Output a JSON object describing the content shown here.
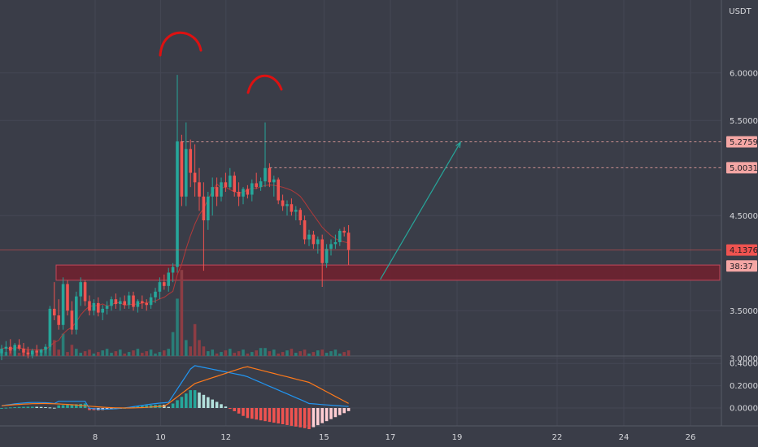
{
  "chart_data": {
    "type": "candlestick",
    "currency": "USDT",
    "price_axis": {
      "range": [
        2.75,
        6.35
      ],
      "ticks": [
        "6.0000",
        "5.5000",
        "4.5000",
        "3.5000",
        "3.0000"
      ]
    },
    "macd_axis": {
      "range": [
        -0.05,
        0.45
      ],
      "ticks": [
        "0.4000",
        "0.2000",
        "0.0000"
      ]
    },
    "x_axis": {
      "labels": [
        {
          "label": "8",
          "day": 8
        },
        {
          "label": "10",
          "day": 10
        },
        {
          "label": "12",
          "day": 12
        },
        {
          "label": "15",
          "day": 15
        },
        {
          "label": "17",
          "day": 17
        },
        {
          "label": "19",
          "day": 19
        },
        {
          "label": "22",
          "day": 22
        },
        {
          "label": "24",
          "day": 24
        },
        {
          "label": "26",
          "day": 26
        }
      ]
    },
    "price_tags": [
      {
        "label": "5.2759",
        "value": 5.2759,
        "kind": "level"
      },
      {
        "label": "5.0031",
        "value": 5.0031,
        "kind": "level"
      },
      {
        "label": "4.1376",
        "value": 4.1376,
        "kind": "current"
      },
      {
        "label": "38:37",
        "value": 3.97,
        "kind": "countdown"
      }
    ],
    "support_zone": [
      3.82,
      3.98
    ],
    "target_arrow": {
      "from": [
        16.7,
        3.83
      ],
      "to": [
        19.1,
        5.27
      ]
    },
    "annotations": [
      "double-top arcs over the 5.98 and 5.48 highs"
    ],
    "colors": {
      "up": "#26a69a",
      "down": "#ef5350",
      "zone": "#7a2430",
      "ma": "#b23a3a",
      "macd_line": "#2196f3",
      "signal_line": "#ff7a1a",
      "price_tag": "#f4a6a4",
      "current_tag": "#ef5350",
      "arrow": "#26a69a",
      "arc": "#dd1111"
    }
  }
}
